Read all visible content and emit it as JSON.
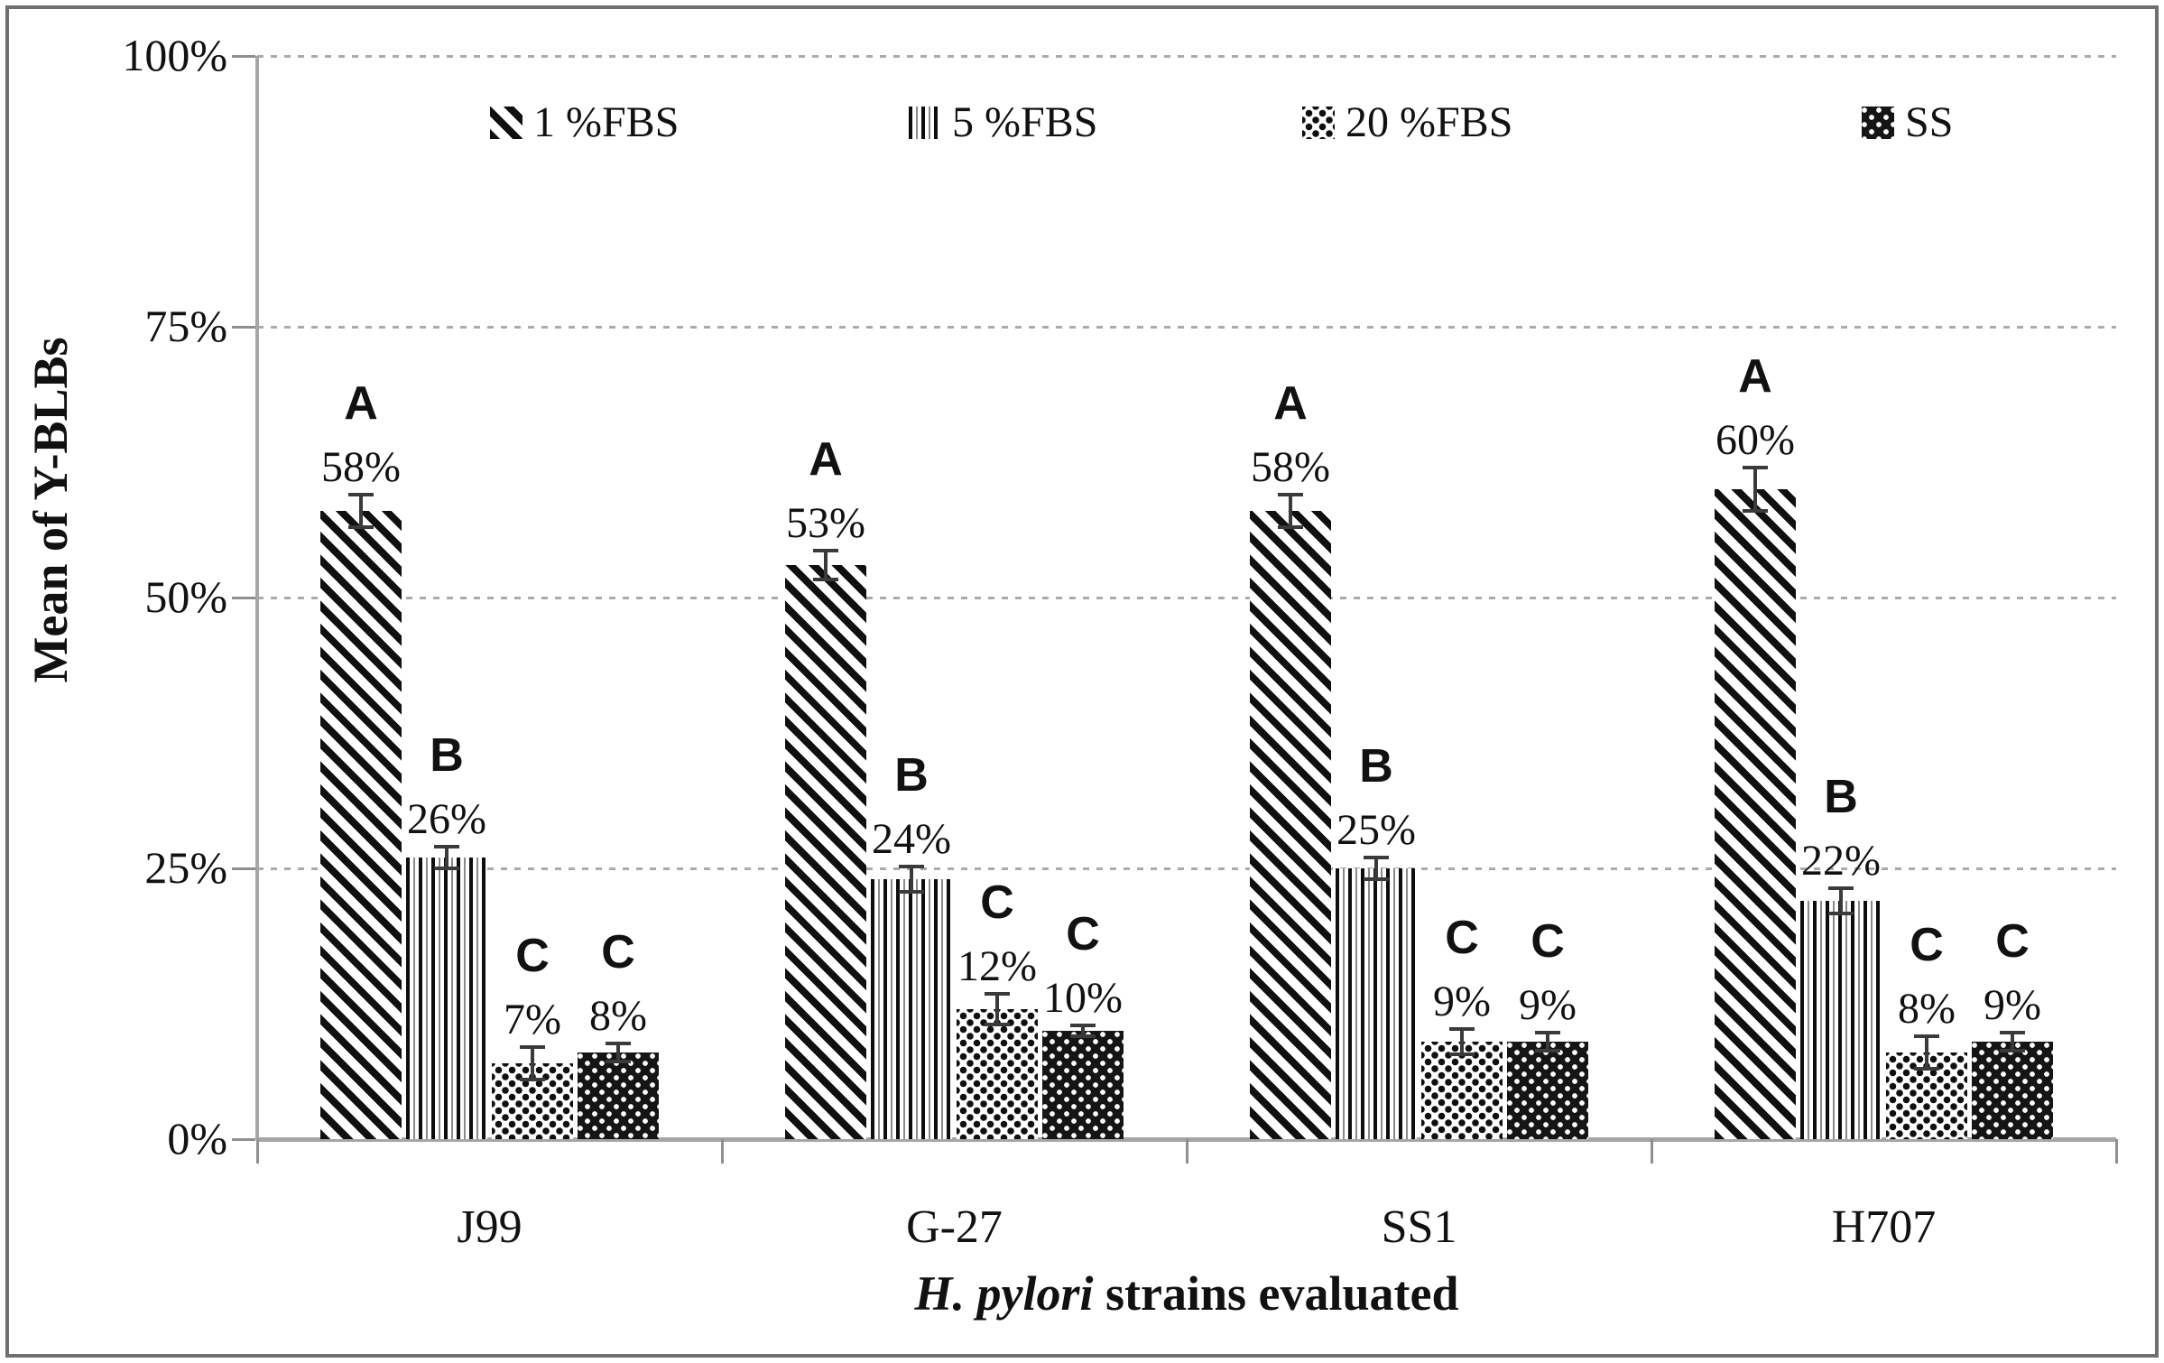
{
  "chart_data": {
    "type": "bar",
    "title": "",
    "categories": [
      "J99",
      "G-27",
      "SS1",
      "H707"
    ],
    "series": [
      {
        "name": "1 %FBS",
        "pattern": "diagonal-stripes",
        "values": [
          58,
          53,
          58,
          60
        ],
        "value_labels": [
          "58%",
          "53%",
          "58%",
          "60%"
        ],
        "sig_letters": [
          "A",
          "A",
          "A",
          "A"
        ],
        "error_pct": [
          1.5,
          1.3,
          1.5,
          2.0
        ]
      },
      {
        "name": "5 %FBS",
        "pattern": "vertical-stripes",
        "values": [
          26,
          24,
          25,
          22
        ],
        "value_labels": [
          "26%",
          "24%",
          "25%",
          "22%"
        ],
        "sig_letters": [
          "B",
          "B",
          "B",
          "B"
        ],
        "error_pct": [
          1.0,
          1.2,
          1.0,
          1.2
        ]
      },
      {
        "name": "20 %FBS",
        "pattern": "checker-dots",
        "values": [
          7,
          12,
          9,
          8
        ],
        "value_labels": [
          "7%",
          "12%",
          "9%",
          "8%"
        ],
        "sig_letters": [
          "C",
          "C",
          "C",
          "C"
        ],
        "error_pct": [
          1.5,
          1.4,
          1.2,
          1.5
        ]
      },
      {
        "name": "SS",
        "pattern": "white-dots-on-black",
        "values": [
          8,
          10,
          9,
          9
        ],
        "value_labels": [
          "8%",
          "10%",
          "9%",
          "9%"
        ],
        "sig_letters": [
          "C",
          "C",
          "C",
          "C"
        ],
        "error_pct": [
          0.8,
          0.5,
          0.8,
          0.8
        ]
      }
    ],
    "xlabel": {
      "italic": "H. pylori",
      "rest": " strains evaluated"
    },
    "ylabel": "Mean of Y-BLBs",
    "y_ticks": [
      "0%",
      "25%",
      "50%",
      "75%",
      "100%"
    ],
    "ylim": [
      0,
      100
    ],
    "grid": {
      "horizontal": true,
      "style": "dotted",
      "levels": [
        25,
        50,
        75,
        100
      ]
    },
    "legend_position": "top-inside"
  },
  "colors": {
    "ink": "#111111",
    "axis": "#a6a6a6",
    "grid": "#ababab",
    "frame": "#6f6f6f",
    "error_bar": "#3a3a3a",
    "background": "#ffffff"
  }
}
